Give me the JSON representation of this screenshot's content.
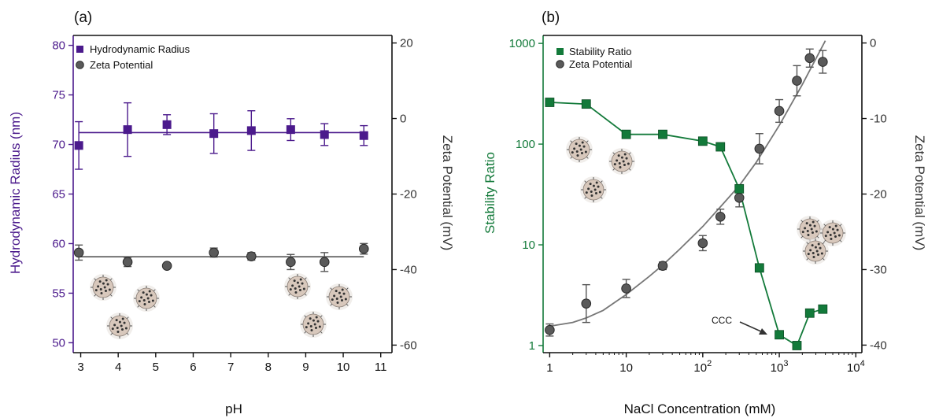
{
  "colors": {
    "purple": "#4b1a8c",
    "green": "#137a3a",
    "dark_gray": "#555555",
    "marker_gray": "#5a5a5a",
    "axis_black": "#111111",
    "particle_base": "#d8c8bc",
    "particle_dot": "#333333"
  },
  "chart_data": [
    {
      "panel_label": "(a)",
      "type": "scatter",
      "xlabel": "pH",
      "ylabel_left": "Hydrodynamic Radius (nm)",
      "ylabel_right": "Zeta Potential (mV)",
      "xlim": [
        2.8,
        11.3
      ],
      "ylim_left": [
        49,
        81
      ],
      "ylim_right": [
        -62,
        22
      ],
      "xticks": [
        3,
        4,
        5,
        6,
        7,
        8,
        9,
        10,
        11
      ],
      "yticks_left": [
        50,
        55,
        60,
        65,
        70,
        75,
        80
      ],
      "yticks_right": [
        -60,
        -40,
        -20,
        0,
        20
      ],
      "legend_position": "top-left",
      "series": [
        {
          "name": "Hydrodynamic Radius",
          "axis": "left",
          "marker": "square",
          "color": "#4b1a8c",
          "x": [
            2.95,
            4.25,
            5.3,
            6.55,
            7.55,
            8.6,
            9.5,
            10.55
          ],
          "y": [
            69.9,
            71.5,
            72.0,
            71.1,
            71.4,
            71.5,
            71.0,
            70.9
          ],
          "yerr": [
            2.4,
            2.7,
            1.0,
            2.0,
            2.0,
            1.1,
            1.1,
            1.0
          ],
          "fit": {
            "kind": "constant",
            "value": 71.2,
            "x_range": [
              2.95,
              10.55
            ]
          }
        },
        {
          "name": "Zeta Potential",
          "axis": "right",
          "marker": "circle",
          "color": "#555555",
          "x": [
            2.95,
            4.25,
            5.3,
            6.55,
            7.55,
            8.6,
            9.5,
            10.55
          ],
          "y": [
            -35.5,
            -38.0,
            -39.0,
            -35.5,
            -36.5,
            -38.0,
            -38.0,
            -34.5
          ],
          "yerr": [
            2.0,
            1.2,
            0.0,
            1.2,
            1.0,
            2.0,
            2.5,
            1.4
          ],
          "fit": {
            "kind": "constant",
            "value": -36.6,
            "x_range": [
              2.95,
              10.55
            ]
          }
        }
      ]
    },
    {
      "panel_label": "(b)",
      "type": "scatter",
      "xlabel": "NaCl Concentration (mM)",
      "ylabel_left": "Stability Ratio",
      "ylabel_right": "Zeta Potential (mV)",
      "xscale": "log",
      "yscale_left": "log",
      "xlim": [
        0.82,
        12000
      ],
      "ylim_left": [
        0.85,
        1200
      ],
      "ylim_right": [
        -41,
        1
      ],
      "xticks": [
        {
          "value": 1,
          "label": "1"
        },
        {
          "value": 10,
          "label": "10"
        },
        {
          "value": 100,
          "label": "10",
          "exp": "2"
        },
        {
          "value": 1000,
          "label": "10",
          "exp": "3"
        },
        {
          "value": 10000,
          "label": "10",
          "exp": "4"
        }
      ],
      "yticks_left": [
        {
          "value": 1,
          "label": "1"
        },
        {
          "value": 10,
          "label": "10"
        },
        {
          "value": 100,
          "label": "100"
        },
        {
          "value": 1000,
          "label": "1000"
        }
      ],
      "yticks_right": [
        -40,
        -30,
        -20,
        -10,
        0
      ],
      "legend_position": "top-left",
      "annotation": {
        "text": "CCC",
        "points_to": [
          1000,
          1.25
        ]
      },
      "series": [
        {
          "name": "Stability Ratio",
          "axis": "left",
          "marker": "square",
          "color": "#137a3a",
          "x": [
            1,
            3,
            10,
            30,
            100,
            170,
            300,
            550,
            1000,
            1700,
            2500,
            3700
          ],
          "y": [
            260,
            250,
            125,
            125,
            107,
            94,
            36,
            5.9,
            1.28,
            1.0,
            2.1,
            2.3
          ],
          "connected": true
        },
        {
          "name": "Zeta Potential",
          "axis": "right",
          "marker": "circle",
          "color": "#555555",
          "x": [
            1,
            3,
            10,
            30,
            100,
            170,
            300,
            550,
            1000,
            1700,
            2500,
            3700
          ],
          "y": [
            -38.0,
            -34.5,
            -32.5,
            -29.5,
            -26.5,
            -23.0,
            -20.5,
            -14.0,
            -9.0,
            -5.0,
            -2.0,
            -2.5
          ],
          "yerr": [
            0.8,
            2.5,
            1.2,
            0.5,
            1.0,
            1.0,
            1.2,
            2.0,
            1.5,
            2.0,
            1.2,
            1.5
          ],
          "fit": {
            "kind": "curve",
            "x": [
              1,
              2,
              3,
              5,
              10,
              20,
              30,
              50,
              100,
              200,
              300,
              500,
              1000,
              2000,
              3000,
              4000
            ],
            "y": [
              -37.5,
              -37.0,
              -36.4,
              -35.4,
              -33.3,
              -30.9,
              -29.4,
              -27.3,
              -24.3,
              -20.9,
              -18.9,
              -15.8,
              -10.9,
              -5.5,
              -2.1,
              0.3
            ]
          }
        }
      ]
    }
  ]
}
